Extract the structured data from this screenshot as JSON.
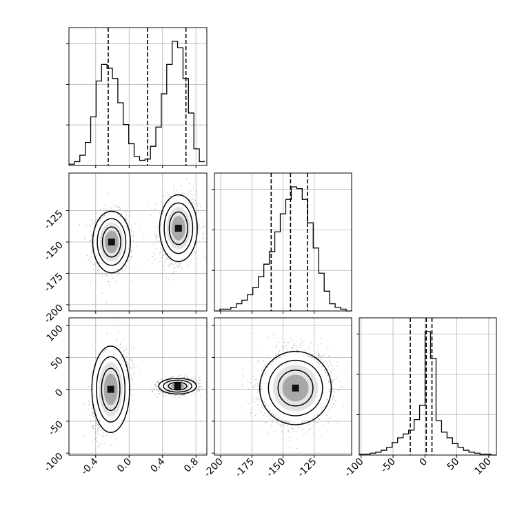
{
  "chart_data": {
    "type": "corner",
    "grid": true,
    "params": [
      "p1",
      "p2",
      "p3"
    ],
    "ranges": {
      "p1": [
        -0.72,
        0.93
      ],
      "p2": [
        -205,
        -95
      ],
      "p3": [
        -103,
        112
      ]
    },
    "ticks": {
      "p1": [
        "-0.4",
        "0.0",
        "0.4",
        "0.8"
      ],
      "p2": [
        "-200",
        "-175",
        "-150",
        "-125"
      ],
      "p3": [
        "-100",
        "-50",
        "0",
        "50",
        "100"
      ]
    },
    "tick_values": {
      "p1": [
        -0.4,
        0.0,
        0.4,
        0.8
      ],
      "p2": [
        -200,
        -175,
        -150,
        -125
      ],
      "p3": [
        -100,
        -50,
        0,
        50,
        100
      ]
    },
    "histograms": {
      "p1": {
        "edges": [
          -0.72,
          -0.655,
          -0.59,
          -0.525,
          -0.46,
          -0.395,
          -0.33,
          -0.265,
          -0.2,
          -0.135,
          -0.07,
          -0.005,
          0.06,
          0.125,
          0.19,
          0.255,
          0.32,
          0.385,
          0.45,
          0.515,
          0.58,
          0.645,
          0.71,
          0.775,
          0.84,
          0.905
        ],
        "counts": [
          1,
          3,
          8,
          18,
          38,
          66,
          79,
          76,
          68,
          49,
          32,
          17,
          7,
          4,
          5,
          15,
          30,
          56,
          79,
          97,
          92,
          68,
          41,
          13,
          3
        ],
        "quantiles": [
          -0.25,
          0.22,
          0.68
        ]
      },
      "p2": {
        "edges": [
          -205,
          -200.6,
          -196.2,
          -191.8,
          -187.4,
          -183,
          -178.6,
          -174.2,
          -169.8,
          -165.4,
          -161,
          -156.6,
          -152.2,
          -147.8,
          -143.4,
          -139,
          -134.6,
          -130.2,
          -125.8,
          -121.4,
          -117,
          -112.6,
          -108.2,
          -103.8,
          -99.4,
          -95
        ],
        "counts": [
          0,
          1,
          1,
          2,
          4,
          6,
          9,
          13,
          19,
          26,
          33,
          44,
          54,
          62,
          69,
          68,
          62,
          49,
          35,
          21,
          11,
          4,
          2,
          1,
          0
        ],
        "quantiles": [
          -159.5,
          -144,
          -130.5
        ]
      },
      "p3": {
        "edges": [
          -103,
          -94.4,
          -85.8,
          -77.2,
          -68.6,
          -60,
          -51.4,
          -42.8,
          -34.2,
          -25.6,
          -17,
          -8.4,
          0.2,
          8.8,
          17.4,
          26,
          34.6,
          43.2,
          51.8,
          60.4,
          69,
          77.6,
          86.2,
          94.8,
          103.4,
          112
        ],
        "counts": [
          1,
          1,
          2,
          3,
          5,
          8,
          13,
          18,
          22,
          26,
          37,
          52,
          129,
          101,
          36,
          24,
          18,
          12,
          8,
          5,
          3,
          2,
          1,
          1,
          0
        ],
        "quantiles": [
          -23,
          2,
          11
        ]
      }
    },
    "clusters": {
      "p1_p2": [
        {
          "mean": [
            -0.21,
            -150
          ],
          "sd": [
            0.11,
            12
          ],
          "rho": 0.0,
          "n": 2200
        },
        {
          "mean": [
            0.59,
            -139
          ],
          "sd": [
            0.11,
            13
          ],
          "rho": 0.15,
          "n": 2200
        }
      ],
      "p1_p3": [
        {
          "mean": [
            -0.22,
            0
          ],
          "sd": [
            0.11,
            33
          ],
          "rho": 0.5,
          "n": 2200
        },
        {
          "mean": [
            0.58,
            5
          ],
          "sd": [
            0.11,
            6
          ],
          "rho": 0.1,
          "n": 2200
        }
      ],
      "p2_p3": [
        {
          "mean": [
            -140,
            2
          ],
          "sd": [
            14,
            28
          ],
          "rho": 0.05,
          "n": 4400
        }
      ]
    }
  }
}
